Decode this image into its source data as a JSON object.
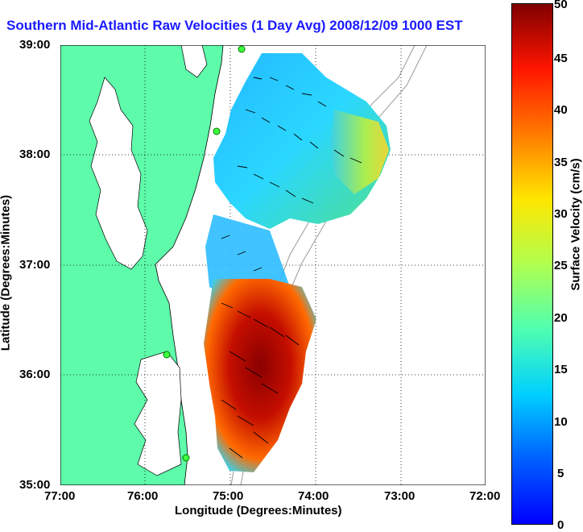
{
  "title": "Southern Mid-Atlantic Raw Velocities (1 Day Avg) 2008/12/09 1000 EST",
  "xlabel": "Longitude (Degrees:Minutes)",
  "ylabel": "Latitude (Degrees:Minutes)",
  "colorbar": {
    "label": "Surface Velocity (cm/s)",
    "min": 0,
    "max": 50,
    "ticks": [
      "0",
      "5",
      "10",
      "15",
      "20",
      "25",
      "30",
      "35",
      "40",
      "45",
      "50"
    ]
  },
  "x_ticks": [
    "77:00",
    "76:00",
    "75:00",
    "74:00",
    "73:00",
    "72:00"
  ],
  "y_ticks": [
    "39:00",
    "38:00",
    "37:00",
    "36:00",
    "35:00"
  ],
  "colors": {
    "land": "#5dfbaa",
    "title": "#1a1aff",
    "ocean": "#ffffff"
  }
}
